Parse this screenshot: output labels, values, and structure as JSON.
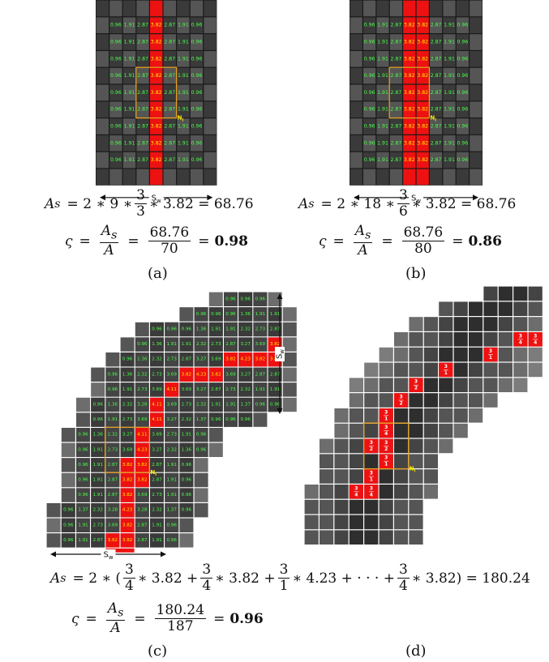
{
  "colors": {
    "red": "#ee1111",
    "green_text": "#49ff49",
    "yellow_text": "#ffee00",
    "box": "#e8a020",
    "grid_gap": "#1a1a1a",
    "dark": "#3a3a3a",
    "mid": "#555555",
    "light": "#6d6d6d",
    "lighter": "#7c7c7c"
  },
  "grid_a": {
    "rows": [
      [
        "0.96",
        "1.91",
        "2.87",
        "3.82",
        "2.87",
        "1.91",
        "0.96"
      ],
      [
        "0.96",
        "1.91",
        "2.87",
        "3.82",
        "2.87",
        "1.91",
        "0.96"
      ],
      [
        "0.96",
        "1.91",
        "2.87",
        "3.82",
        "2.87",
        "1.91",
        "0.96"
      ],
      [
        "0.96",
        "1.91",
        "2.87",
        "3.82",
        "2.87",
        "1.91",
        "0.96"
      ],
      [
        "0.96",
        "1.91",
        "2.87",
        "3.82",
        "2.87",
        "1.91",
        "0.96"
      ],
      [
        "0.96",
        "1.91",
        "2.87",
        "3.82",
        "2.87",
        "1.91",
        "0.96"
      ],
      [
        "0.96",
        "1.91",
        "2.87",
        "3.82",
        "2.87",
        "1.91",
        "0.96"
      ],
      [
        "0.96",
        "1.91",
        "2.87",
        "3.82",
        "2.87",
        "1.91",
        "0.96"
      ],
      [
        "0.96",
        "1.91",
        "2.87",
        "3.82",
        "2.87",
        "1.91",
        "0.96"
      ]
    ],
    "node_label": "N",
    "node_sub": "i",
    "sw_label": "S",
    "sw_sub": "w"
  },
  "grid_b": {
    "rows": [
      [
        "0.96",
        "1.91",
        "2.87",
        "3.82",
        "3.82",
        "2.87",
        "1.91",
        "0.96"
      ],
      [
        "0.96",
        "1.91",
        "2.87",
        "3.82",
        "3.82",
        "2.87",
        "1.91",
        "0.96"
      ],
      [
        "0.96",
        "1.91",
        "2.87",
        "3.82",
        "3.82",
        "2.87",
        "1.91",
        "0.96"
      ],
      [
        "0.96",
        "1.91",
        "2.87",
        "3.82",
        "3.82",
        "2.87",
        "1.91",
        "0.96"
      ],
      [
        "0.96",
        "1.91",
        "2.87",
        "3.82",
        "3.82",
        "2.87",
        "1.91",
        "0.96"
      ],
      [
        "0.96",
        "1.91",
        "2.87",
        "3.82",
        "3.82",
        "2.87",
        "1.91",
        "0.96"
      ],
      [
        "0.96",
        "1.91",
        "2.87",
        "3.82",
        "3.82",
        "2.87",
        "1.91",
        "0.96"
      ],
      [
        "0.96",
        "1.91",
        "2.87",
        "3.82",
        "3.82",
        "2.87",
        "1.91",
        "0.96"
      ],
      [
        "0.96",
        "1.91",
        "2.87",
        "3.82",
        "3.82",
        "2.87",
        "1.91",
        "0.96"
      ]
    ],
    "node_label": "N",
    "node_sub": "i",
    "sw_label": "S",
    "sw_sub": "w"
  },
  "grid_c": {
    "rows": [
      [
        "0.96",
        "0.96",
        "0.96"
      ],
      [
        "0.96",
        "0.96",
        "0.96",
        "1.36",
        "1.91",
        "1.91"
      ],
      [
        "0.96",
        "0.96",
        "0.96",
        "1.36",
        "1.91",
        "1.91",
        "2.32",
        "2.73",
        "2.87"
      ],
      [
        "0.96",
        "1.36",
        "1.91",
        "1.91",
        "2.32",
        "2.73",
        "2.87",
        "3.27",
        "3.69",
        "3.82"
      ],
      [
        "0.96",
        "1.36",
        "2.32",
        "2.73",
        "2.87",
        "3.27",
        "3.69",
        "3.82",
        "4.23",
        "3.82",
        "3.82"
      ],
      [
        "0.96",
        "1.36",
        "2.32",
        "2.73",
        "3.69",
        "3.82",
        "4.23",
        "3.82",
        "3.69",
        "3.27",
        "2.87",
        "2.87"
      ],
      [
        "0.96",
        "1.91",
        "2.73",
        "3.69",
        "4.11",
        "3.69",
        "3.27",
        "2.87",
        "2.73",
        "2.32",
        "1.91",
        "1.91"
      ],
      [
        "0.96",
        "1.36",
        "2.32",
        "3.28",
        "4.11",
        "3.69",
        "2.73",
        "2.32",
        "1.91",
        "1.91",
        "1.37",
        "0.96",
        "0.96"
      ],
      [
        "0.96",
        "1.91",
        "2.73",
        "3.69",
        "4.11",
        "3.27",
        "2.32",
        "1.37",
        "0.96",
        "0.96",
        "0.96"
      ],
      [
        "0.96",
        "1.36",
        "2.32",
        "3.27",
        "4.11",
        "3.69",
        "2.73",
        "1.91",
        "0.96"
      ],
      [
        "0.96",
        "1.91",
        "2.73",
        "3.69",
        "4.23",
        "3.27",
        "2.32",
        "1.36",
        "0.96"
      ],
      [
        "0.96",
        "1.91",
        "2.87",
        "3.82",
        "3.82",
        "2.87",
        "1.91",
        "0.96"
      ],
      [
        "0.96",
        "1.91",
        "2.87",
        "3.82",
        "3.82",
        "2.87",
        "1.91",
        "0.96"
      ],
      [
        "0.96",
        "1.91",
        "2.87",
        "3.82",
        "3.69",
        "2.73",
        "1.91",
        "0.96"
      ],
      [
        "0.96",
        "1.37",
        "2.32",
        "3.28",
        "4.23",
        "3.28",
        "2.32",
        "1.37",
        "0.96"
      ],
      [
        "0.96",
        "1.91",
        "2.73",
        "3.69",
        "3.82",
        "2.87",
        "1.91",
        "0.96"
      ],
      [
        "0.96",
        "1.91",
        "2.87",
        "3.82",
        "3.82",
        "2.87",
        "1.91",
        "0.96"
      ]
    ],
    "node_label": "N",
    "node_sub": "i",
    "sw_label": "S",
    "sw_sub": "w"
  },
  "grid_d": {
    "fractions": [
      {
        "n": "3",
        "d": "4"
      },
      {
        "n": "3",
        "d": "4"
      },
      {
        "n": "3",
        "d": "1"
      },
      {
        "n": "3",
        "d": "1"
      },
      {
        "n": "3",
        "d": "2"
      },
      {
        "n": "3",
        "d": "2"
      },
      {
        "n": "3",
        "d": "1"
      },
      {
        "n": "3",
        "d": "4"
      },
      {
        "n": "3",
        "d": "2"
      },
      {
        "n": "3",
        "d": "2"
      },
      {
        "n": "3",
        "d": "1"
      },
      {
        "n": "3",
        "d": "1"
      },
      {
        "n": "3",
        "d": "4"
      },
      {
        "n": "3",
        "d": "4"
      }
    ],
    "node_label": "N",
    "node_sub": "i"
  },
  "eq_a": {
    "lhs_A": "A",
    "lhs_sub": "s",
    "line1_pre": "= 2 ∗ 9 ∗",
    "frac_n": "3",
    "frac_d": "3",
    "line1_post": "∗ 3.82 = 68.76",
    "sigma": "ς",
    "f1_n": "A",
    "f1_n_sub": "s",
    "f1_d": "A",
    "f2_n": "68.76",
    "f2_d": "70",
    "result": "0.98"
  },
  "eq_b": {
    "lhs_A": "A",
    "lhs_sub": "s",
    "line1_pre": "= 2 ∗ 18 ∗",
    "frac_n": "3",
    "frac_d": "6",
    "line1_post": "∗ 3.82 = 68.76",
    "sigma": "ς",
    "f1_n": "A",
    "f1_n_sub": "s",
    "f1_d": "A",
    "f2_n": "68.76",
    "f2_d": "80",
    "result": "0.86"
  },
  "eq_c": {
    "lhs_A": "A",
    "lhs_sub": "s",
    "l1_a": "= 2 ∗ (",
    "t1_n": "3",
    "t1_d": "4",
    "t1_post": "∗ 3.82 +",
    "t2_n": "3",
    "t2_d": "4",
    "t2_post": "∗ 3.82 +",
    "t3_n": "3",
    "t3_d": "1",
    "t3_post": "∗ 4.23 + · · · +",
    "t4_n": "3",
    "t4_d": "4",
    "t4_post": "∗ 3.82) = 180.24",
    "sigma": "ς",
    "f1_n": "A",
    "f1_n_sub": "s",
    "f1_d": "A",
    "f2_n": "180.24",
    "f2_d": "187",
    "result": "0.96"
  },
  "captions": {
    "a": "(a)",
    "b": "(b)",
    "c": "(c)",
    "d": "(d)"
  }
}
